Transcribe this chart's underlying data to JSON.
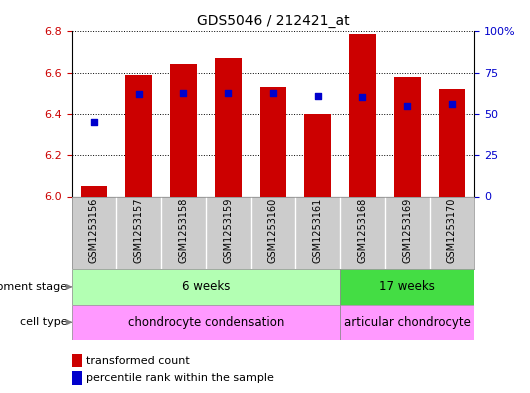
{
  "title": "GDS5046 / 212421_at",
  "samples": [
    "GSM1253156",
    "GSM1253157",
    "GSM1253158",
    "GSM1253159",
    "GSM1253160",
    "GSM1253161",
    "GSM1253168",
    "GSM1253169",
    "GSM1253170"
  ],
  "transformed_counts": [
    6.05,
    6.59,
    6.64,
    6.67,
    6.53,
    6.4,
    6.79,
    6.58,
    6.52
  ],
  "percentile_ranks": [
    45,
    62,
    63,
    63,
    63,
    61,
    60,
    55,
    56
  ],
  "ylim_left": [
    6.0,
    6.8
  ],
  "ylim_right": [
    0,
    100
  ],
  "yticks_left": [
    6.0,
    6.2,
    6.4,
    6.6,
    6.8
  ],
  "yticks_right": [
    0,
    25,
    50,
    75,
    100
  ],
  "bar_color": "#cc0000",
  "dot_color": "#0000cc",
  "bar_bottom": 6.0,
  "dev_stage_labels": [
    "6 weeks",
    "17 weeks"
  ],
  "dev_stage_color_light": "#b3ffb3",
  "dev_stage_color_dark": "#44dd44",
  "cell_type_labels": [
    "chondrocyte condensation",
    "articular chondrocyte"
  ],
  "cell_type_color": "#ff99ff",
  "legend_items": [
    "transformed count",
    "percentile rank within the sample"
  ],
  "left_label_dev": "development stage",
  "left_label_cell": "cell type",
  "background_color": "#ffffff",
  "tick_label_color_left": "#cc0000",
  "tick_label_color_right": "#0000cc",
  "sample_bg_color": "#cccccc",
  "sample_separator_color": "#ffffff"
}
